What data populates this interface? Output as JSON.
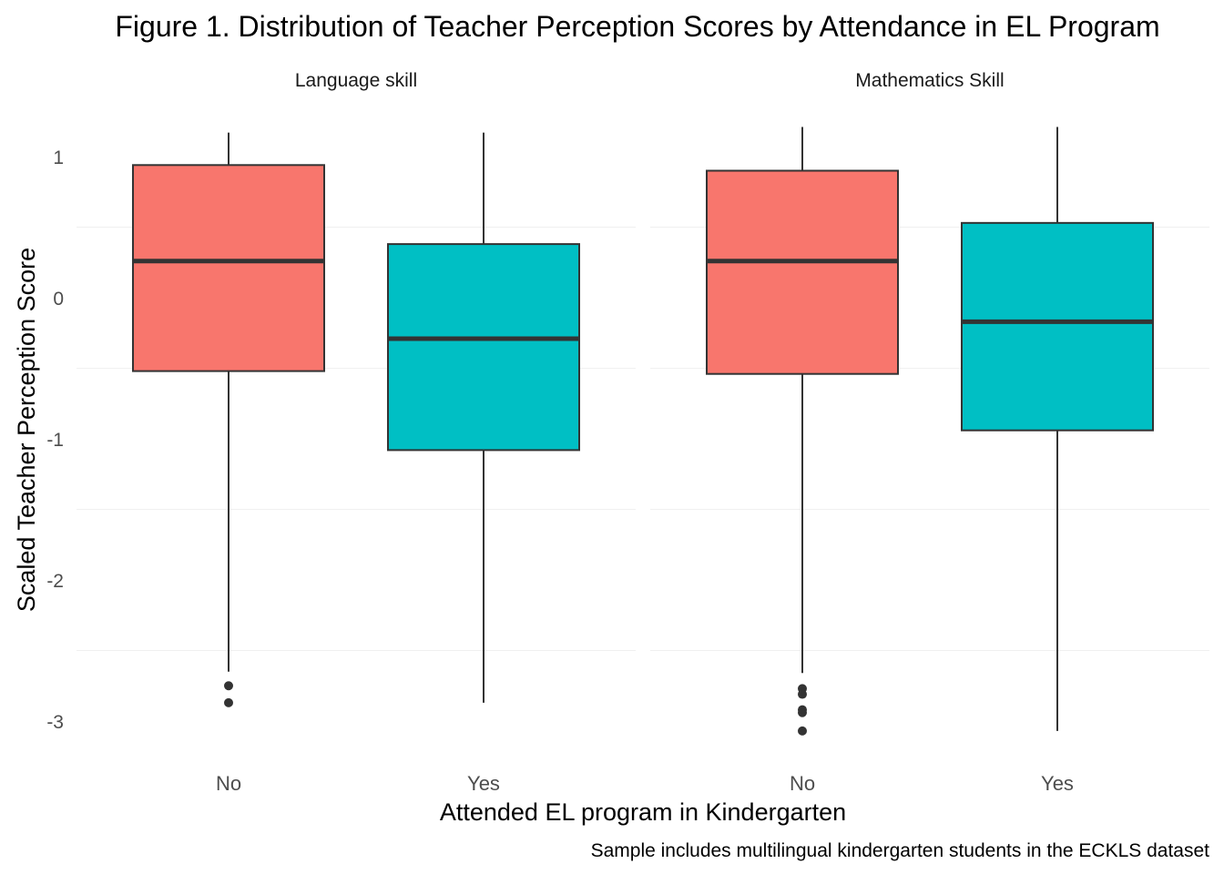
{
  "chart_data": {
    "type": "boxplot",
    "title": "Figure 1. Distribution of Teacher Perception Scores by Attendance in EL Program",
    "caption": "Sample includes multilingual kindergarten students in the ECKLS dataset",
    "xlabel": "Attended EL program in Kindergarten",
    "ylabel": "Scaled Teacher Perception Score",
    "ylim": [
      -3.2,
      1.2
    ],
    "y_ticks": [
      1,
      0,
      -1,
      -2,
      -3
    ],
    "y_tick_labels": [
      "1",
      "0",
      "-1",
      "-2",
      "-3"
    ],
    "categories": [
      "No",
      "Yes"
    ],
    "grid": true,
    "legend": "none",
    "colors": {
      "No": "#F8766D",
      "Yes": "#00BFC4",
      "outline": "#333333",
      "grid": "#EBEBEB"
    },
    "facets": [
      {
        "label": "Language skill",
        "boxes": [
          {
            "category": "No",
            "whisker_low": -2.65,
            "q1": -0.52,
            "median": 0.26,
            "q3": 0.94,
            "whisker_high": 1.17,
            "outliers": [
              -2.75,
              -2.87
            ]
          },
          {
            "category": "Yes",
            "whisker_low": -2.87,
            "q1": -1.08,
            "median": -0.29,
            "q3": 0.38,
            "whisker_high": 1.17,
            "outliers": []
          }
        ]
      },
      {
        "label": "Mathematics Skill",
        "boxes": [
          {
            "category": "No",
            "whisker_low": -2.66,
            "q1": -0.54,
            "median": 0.26,
            "q3": 0.9,
            "whisker_high": 1.21,
            "outliers": [
              -2.77,
              -2.81,
              -2.92,
              -2.94,
              -3.07
            ]
          },
          {
            "category": "Yes",
            "whisker_low": -3.07,
            "q1": -0.94,
            "median": -0.17,
            "q3": 0.53,
            "whisker_high": 1.21,
            "outliers": []
          }
        ]
      }
    ]
  }
}
